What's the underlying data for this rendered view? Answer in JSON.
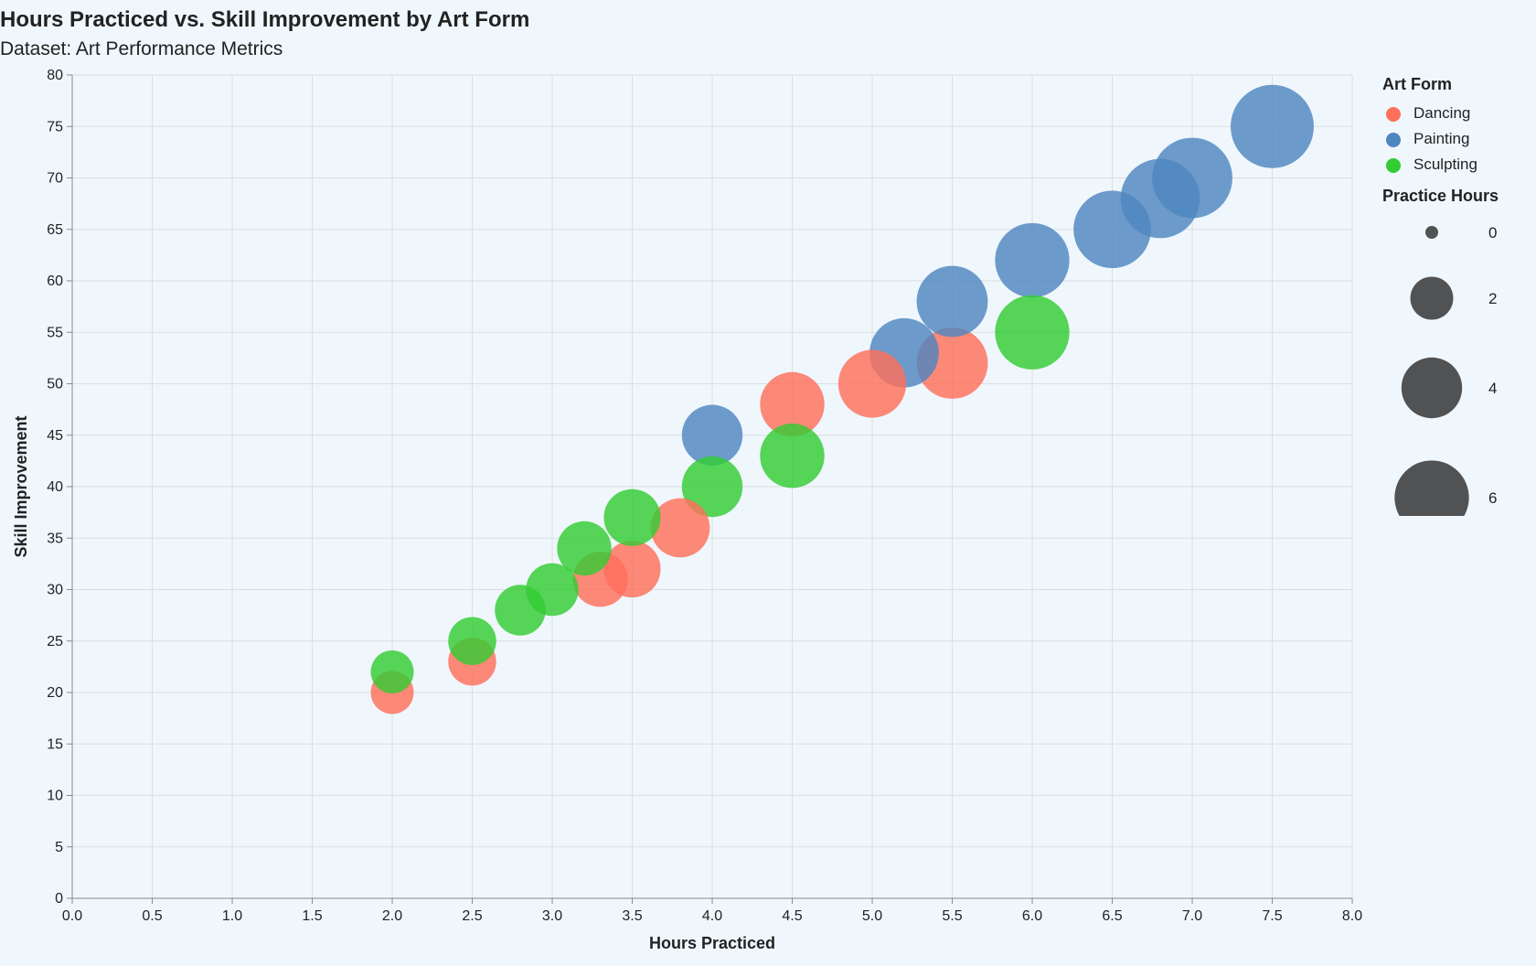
{
  "chart_data": {
    "type": "scatter",
    "title": "Hours Practiced vs. Skill Improvement by Art Form",
    "subtitle": "Dataset: Art Performance Metrics",
    "xlabel": "Hours Practiced",
    "ylabel": "Skill Improvement",
    "xlim": [
      0,
      8
    ],
    "ylim": [
      0,
      80
    ],
    "x_ticks": [
      "0.0",
      "0.5",
      "1.0",
      "1.5",
      "2.0",
      "2.5",
      "3.0",
      "3.5",
      "4.0",
      "4.5",
      "5.0",
      "5.5",
      "6.0",
      "6.5",
      "7.0",
      "7.5",
      "8.0"
    ],
    "y_ticks": [
      "0",
      "5",
      "10",
      "15",
      "20",
      "25",
      "30",
      "35",
      "40",
      "45",
      "50",
      "55",
      "60",
      "65",
      "70",
      "75",
      "80"
    ],
    "grid": true,
    "legend_position": "right",
    "size_encoding": "Hours Practiced",
    "size_legend": {
      "title": "Practice Hours",
      "values": [
        0,
        2,
        4,
        6
      ]
    },
    "series": [
      {
        "name": "Dancing",
        "color": "#ff6f5a",
        "points": [
          {
            "x": 2.0,
            "y": 20
          },
          {
            "x": 2.5,
            "y": 23
          },
          {
            "x": 3.3,
            "y": 31
          },
          {
            "x": 3.5,
            "y": 32
          },
          {
            "x": 3.8,
            "y": 36
          },
          {
            "x": 4.5,
            "y": 48
          },
          {
            "x": 5.0,
            "y": 50
          },
          {
            "x": 5.5,
            "y": 52
          }
        ]
      },
      {
        "name": "Painting",
        "color": "#4f86bf",
        "points": [
          {
            "x": 4.0,
            "y": 45
          },
          {
            "x": 5.2,
            "y": 53
          },
          {
            "x": 5.5,
            "y": 58
          },
          {
            "x": 6.0,
            "y": 62
          },
          {
            "x": 6.5,
            "y": 65
          },
          {
            "x": 6.8,
            "y": 68
          },
          {
            "x": 7.0,
            "y": 70
          },
          {
            "x": 7.5,
            "y": 75
          }
        ]
      },
      {
        "name": "Sculpting",
        "color": "#33cc33",
        "points": [
          {
            "x": 2.0,
            "y": 22
          },
          {
            "x": 2.5,
            "y": 25
          },
          {
            "x": 2.8,
            "y": 28
          },
          {
            "x": 3.0,
            "y": 30
          },
          {
            "x": 3.2,
            "y": 34
          },
          {
            "x": 3.5,
            "y": 37
          },
          {
            "x": 4.0,
            "y": 40
          },
          {
            "x": 4.5,
            "y": 43
          },
          {
            "x": 6.0,
            "y": 55
          }
        ]
      }
    ]
  },
  "legend": {
    "color_title": "Art Form",
    "items": [
      {
        "label": "Dancing",
        "color": "#ff6f5a"
      },
      {
        "label": "Painting",
        "color": "#4f86bf"
      },
      {
        "label": "Sculpting",
        "color": "#33cc33"
      }
    ]
  }
}
